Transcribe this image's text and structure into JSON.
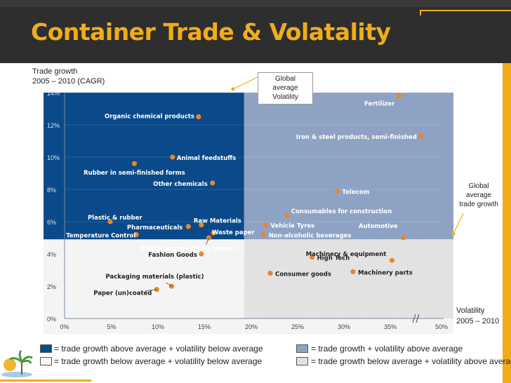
{
  "slide": {
    "title": "Container Trade & Volatality",
    "ylabel_line1": "Trade growth",
    "ylabel_line2": "2005 – 2010 (CAGR)",
    "xlabel_line1": "Volatility",
    "xlabel_line2": "2005 – 2010",
    "callout_volatility": [
      "Global",
      "average",
      "Volatility"
    ],
    "callout_growth": [
      "Global",
      "average",
      "trade growth"
    ]
  },
  "legend": [
    {
      "color": "#0a4a8a",
      "pattern": "solid",
      "label": "= trade growth above average + volatility below average"
    },
    {
      "color": "#8ea3c4",
      "pattern": "solid",
      "label": "= trade growth + volatility above average"
    },
    {
      "color": "#f3f3f3",
      "pattern": "solid",
      "label": "= trade growth below average + volatility below average"
    },
    {
      "color": "#dcdcdc",
      "pattern": "dotted",
      "label": "= trade growth below average + volatility above average"
    }
  ],
  "chart_data": {
    "type": "scatter",
    "xlabel": "Volatility 2005 – 2010",
    "ylabel": "Trade growth 2005 – 2010 (CAGR)",
    "x_ticks": [
      "0%",
      "5%",
      "10%",
      "15%",
      "20%",
      "25%",
      "30%",
      "35%",
      "50%"
    ],
    "y_ticks": [
      "0%",
      "2%",
      "4%",
      "6%",
      "8%",
      "10%",
      "12%",
      "14%"
    ],
    "xlim": [
      0,
      50
    ],
    "ylim": [
      0,
      14
    ],
    "x_axis_break": "between 35% and 50%",
    "avg_volatility": 19.3,
    "avg_trade_growth": 4.9,
    "marker_color": "#e8872a",
    "points": [
      {
        "label": "Fertilizer",
        "x": 37.5,
        "y": 13.8
      },
      {
        "label": "Organic chemical products",
        "x": 14.4,
        "y": 12.5
      },
      {
        "label": "Iron & steel products, semi-finished",
        "x": 44,
        "y": 11.3
      },
      {
        "label": "Animal feedstuffs",
        "x": 11.6,
        "y": 10.0
      },
      {
        "label": "Rubber in semi-finished forms",
        "x": 7.5,
        "y": 9.6
      },
      {
        "label": "Other chemicals",
        "x": 15.9,
        "y": 8.4
      },
      {
        "label": "Telecom",
        "x": 29.3,
        "y": 7.9
      },
      {
        "label": "Consumables for construction",
        "x": 23.9,
        "y": 6.4
      },
      {
        "label": "Plastic & rubber",
        "x": 4.9,
        "y": 6.0
      },
      {
        "label": "Pharmaceuticals",
        "x": 13.3,
        "y": 5.7
      },
      {
        "label": "Raw Materials",
        "x": 14.7,
        "y": 5.8
      },
      {
        "label": "Vehicle Tyres",
        "x": 21.6,
        "y": 5.8
      },
      {
        "label": "Temperature Control",
        "x": 7.7,
        "y": 5.2
      },
      {
        "label": "Waste paper",
        "x": 16.0,
        "y": 5.3
      },
      {
        "label": "Automotive",
        "x": 38.8,
        "y": 5.0
      },
      {
        "label": "Non-alcoholic beverages",
        "x": 21.4,
        "y": 5.2
      },
      {
        "label": "Packaging materials (paper)",
        "x": 15.5,
        "y": 5.0
      },
      {
        "label": "Fashion Goods",
        "x": 14.7,
        "y": 4.0
      },
      {
        "label": "High Tech",
        "x": 26.6,
        "y": 3.8
      },
      {
        "label": "Machinery & equipment",
        "x": 35.5,
        "y": 3.6
      },
      {
        "label": "Consumer goods",
        "x": 22.1,
        "y": 2.8
      },
      {
        "label": "Machinery parts",
        "x": 31.0,
        "y": 2.9
      },
      {
        "label": "Packaging materials (plastic)",
        "x": 11.5,
        "y": 2.0
      },
      {
        "label": "Paper (un)coated",
        "x": 9.9,
        "y": 1.8
      }
    ]
  }
}
